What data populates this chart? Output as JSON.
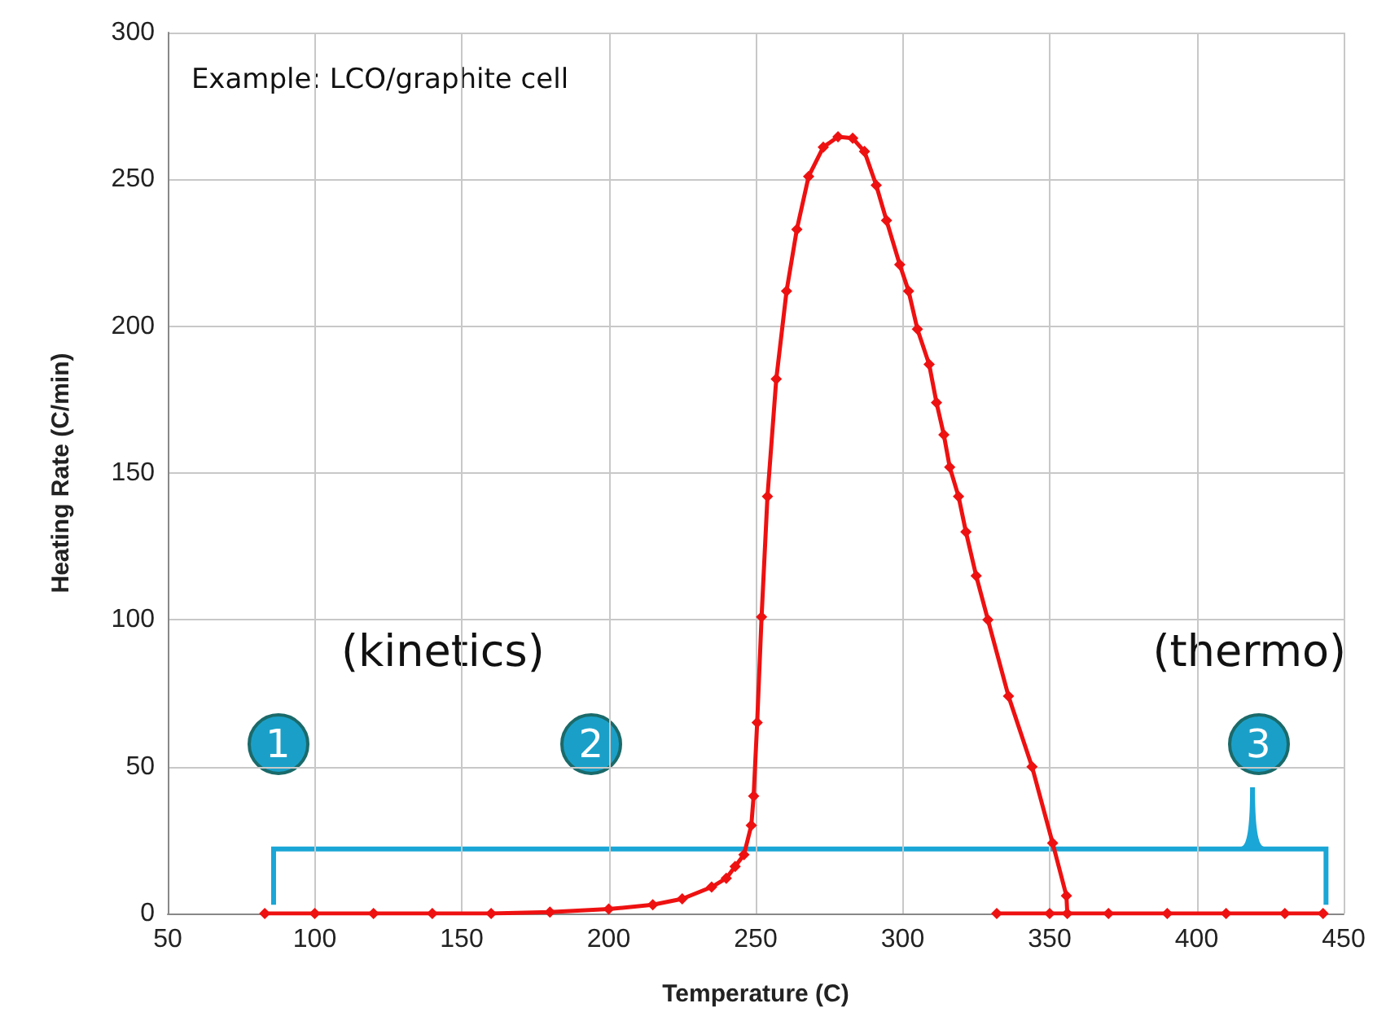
{
  "chart_data": {
    "type": "line",
    "xlabel": "Temperature (C)",
    "ylabel": "Heating Rate (C/min)",
    "annotations": [
      "Example: LCO/graphite cell",
      "(kinetics)",
      "(thermo)",
      "1",
      "2",
      "3"
    ],
    "series": [
      {
        "color": "#ee1111",
        "x": [
          83,
          100,
          120,
          140,
          160,
          180,
          200,
          215,
          225,
          235,
          240,
          243,
          246,
          248.5,
          249.3,
          250.5,
          252,
          254,
          257,
          260.5,
          264,
          268,
          273,
          278,
          283,
          287,
          291,
          294.5,
          299,
          302,
          305,
          309,
          311.5,
          314,
          316,
          319,
          321.5,
          325,
          329,
          336,
          344,
          351,
          355.7,
          356
        ],
        "values": [
          0,
          0,
          0,
          0,
          0,
          0.5,
          1.5,
          3,
          5,
          9,
          12,
          16,
          20,
          30,
          40,
          65,
          101,
          142,
          182,
          212,
          233,
          251,
          261,
          264.5,
          264,
          259.5,
          248,
          236,
          221,
          212,
          199,
          187,
          174,
          163,
          152,
          142,
          130,
          115,
          100,
          74,
          50,
          24,
          6,
          0
        ]
      },
      {
        "color": "#ee1111",
        "x": [
          332,
          350,
          370,
          390,
          410,
          430,
          443
        ],
        "values": [
          0,
          0,
          0,
          0,
          0,
          0,
          0
        ]
      }
    ],
    "xlim": [
      50,
      450
    ],
    "xticks": [
      50,
      100,
      150,
      200,
      250,
      300,
      350,
      400,
      450
    ],
    "ylim": [
      0,
      300
    ],
    "yticks": [
      0,
      50,
      100,
      150,
      200,
      250,
      300
    ],
    "grid": true,
    "marker": "diamond",
    "line_style": "solid"
  }
}
